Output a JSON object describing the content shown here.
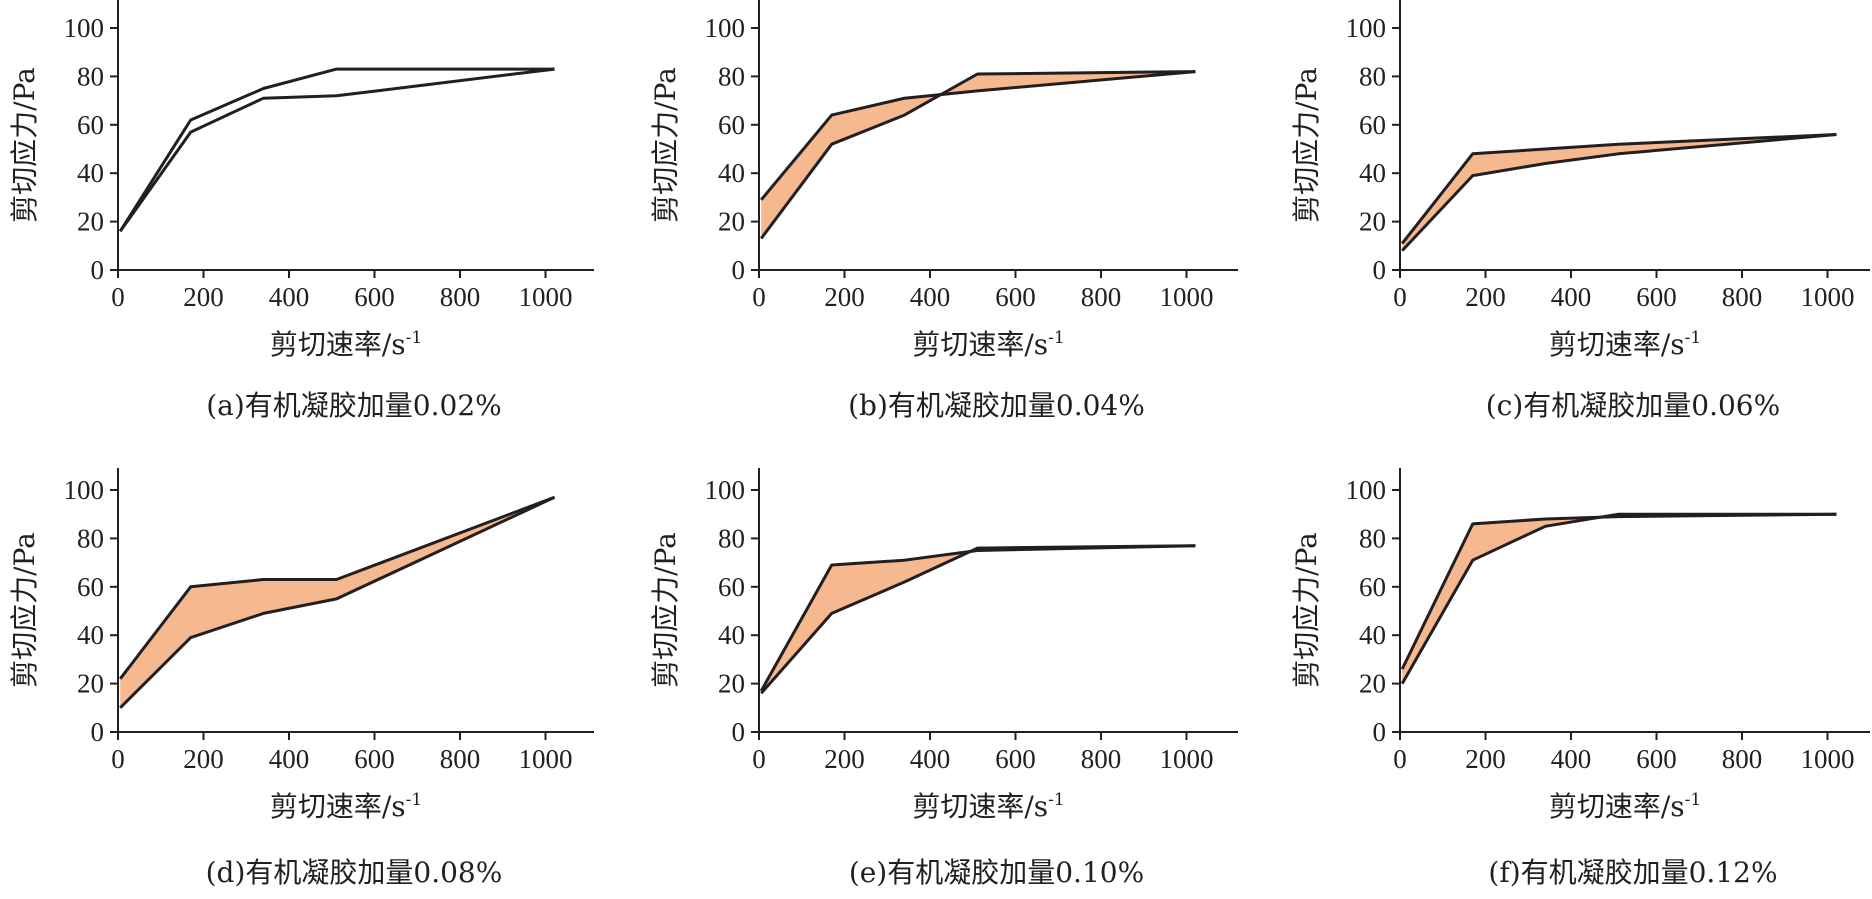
{
  "figure": {
    "fill_color": "#f5b88f",
    "line_color": "#231f20"
  },
  "chart_data": [
    {
      "type": "line",
      "caption": "(a)有机凝胶加量0.02%",
      "xlabel": "剪切速率/s",
      "xlabel_sup": "-1",
      "ylabel": "剪切应力/Pa",
      "xlim": [
        0,
        1100
      ],
      "ylim": [
        0,
        110
      ],
      "xticks": [
        0,
        200,
        400,
        600,
        800,
        1000
      ],
      "yticks": [
        0,
        20,
        40,
        60,
        80,
        100
      ],
      "hysteresis_fill": false,
      "series": [
        {
          "x": [
            5.1,
            170,
            340,
            511,
            1021
          ],
          "y": [
            16,
            62,
            75,
            83,
            83
          ]
        },
        {
          "x": [
            5.1,
            170,
            340,
            511,
            1021
          ],
          "y": [
            16,
            57,
            71,
            72,
            83
          ]
        }
      ]
    },
    {
      "type": "line",
      "caption": "(b)有机凝胶加量0.04%",
      "xlabel": "剪切速率/s",
      "xlabel_sup": "-1",
      "ylabel": "剪切应力/Pa",
      "xlim": [
        0,
        1100
      ],
      "ylim": [
        0,
        110
      ],
      "xticks": [
        0,
        200,
        400,
        600,
        800,
        1000
      ],
      "yticks": [
        0,
        20,
        40,
        60,
        80,
        100
      ],
      "hysteresis_fill": true,
      "series": [
        {
          "x": [
            5.1,
            170,
            340,
            511,
            1021
          ],
          "y": [
            29,
            64,
            71,
            74,
            82
          ]
        },
        {
          "x": [
            5.1,
            170,
            340,
            511,
            1021
          ],
          "y": [
            13,
            52,
            64,
            81,
            82
          ]
        }
      ]
    },
    {
      "type": "line",
      "caption": "(c)有机凝胶加量0.06%",
      "xlabel": "剪切速率/s",
      "xlabel_sup": "-1",
      "ylabel": "剪切应力/Pa",
      "xlim": [
        0,
        1100
      ],
      "ylim": [
        0,
        110
      ],
      "xticks": [
        0,
        200,
        400,
        600,
        800,
        1000
      ],
      "yticks": [
        0,
        20,
        40,
        60,
        80,
        100
      ],
      "hysteresis_fill": true,
      "series": [
        {
          "x": [
            5.1,
            170,
            340,
            511,
            1021
          ],
          "y": [
            11,
            48,
            50,
            52,
            56
          ]
        },
        {
          "x": [
            5.1,
            170,
            340,
            511,
            1021
          ],
          "y": [
            8,
            39,
            44,
            48,
            56
          ]
        }
      ]
    },
    {
      "type": "line",
      "caption": "(d)有机凝胶加量0.08%",
      "xlabel": "剪切速率/s",
      "xlabel_sup": "-1",
      "ylabel": "剪切应力/Pa",
      "xlim": [
        0,
        1100
      ],
      "ylim": [
        0,
        110
      ],
      "xticks": [
        0,
        200,
        400,
        600,
        800,
        1000
      ],
      "yticks": [
        0,
        20,
        40,
        60,
        80,
        100
      ],
      "hysteresis_fill": true,
      "series": [
        {
          "x": [
            5.1,
            170,
            340,
            511,
            1021
          ],
          "y": [
            22,
            60,
            63,
            63,
            97
          ]
        },
        {
          "x": [
            5.1,
            170,
            340,
            511,
            1021
          ],
          "y": [
            10,
            39,
            49,
            55,
            97
          ]
        }
      ]
    },
    {
      "type": "line",
      "caption": "(e)有机凝胶加量0.10%",
      "xlabel": "剪切速率/s",
      "xlabel_sup": "-1",
      "ylabel": "剪切应力/Pa",
      "xlim": [
        0,
        1100
      ],
      "ylim": [
        0,
        110
      ],
      "xticks": [
        0,
        200,
        400,
        600,
        800,
        1000
      ],
      "yticks": [
        0,
        20,
        40,
        60,
        80,
        100
      ],
      "hysteresis_fill": true,
      "series": [
        {
          "x": [
            5.1,
            170,
            340,
            511,
            1021
          ],
          "y": [
            17,
            69,
            71,
            75,
            77
          ]
        },
        {
          "x": [
            5.1,
            170,
            340,
            511,
            1021
          ],
          "y": [
            16,
            49,
            62,
            76,
            77
          ]
        }
      ]
    },
    {
      "type": "line",
      "caption": "(f)有机凝胶加量0.12%",
      "xlabel": "剪切速率/s",
      "xlabel_sup": "-1",
      "ylabel": "剪切应力/Pa",
      "xlim": [
        0,
        1100
      ],
      "ylim": [
        0,
        110
      ],
      "xticks": [
        0,
        200,
        400,
        600,
        800,
        1000
      ],
      "yticks": [
        0,
        20,
        40,
        60,
        80,
        100
      ],
      "hysteresis_fill": true,
      "series": [
        {
          "x": [
            5.1,
            170,
            340,
            511,
            1021
          ],
          "y": [
            26,
            86,
            88,
            89,
            90
          ]
        },
        {
          "x": [
            5.1,
            170,
            340,
            511,
            1021
          ],
          "y": [
            20,
            71,
            85,
            90,
            90
          ]
        }
      ]
    }
  ]
}
